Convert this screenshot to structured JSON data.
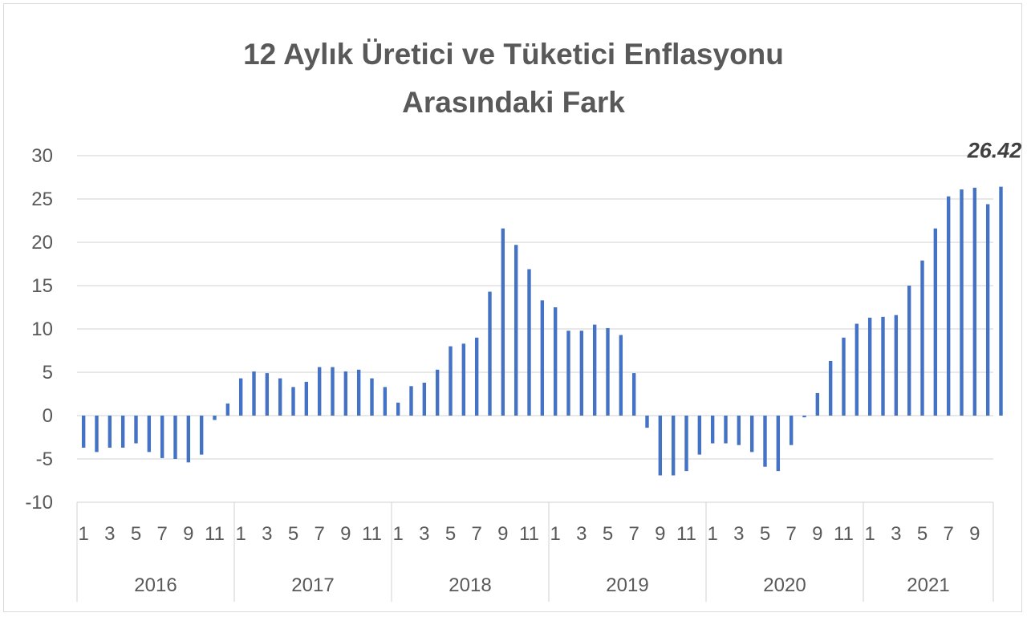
{
  "chart_data": {
    "type": "bar",
    "title_lines": [
      "12 Aylık Üretici ve Tüketici Enflasyonu",
      "Arasındaki Fark"
    ],
    "xlabel": "",
    "ylabel": "",
    "ylim": [
      -10,
      30
    ],
    "yticks": [
      30,
      25,
      20,
      15,
      10,
      5,
      0,
      -5,
      -10
    ],
    "grid": true,
    "legend": "none",
    "bar_color": "#4472c4",
    "years": [
      "2016",
      "2017",
      "2018",
      "2019",
      "2020",
      "2021"
    ],
    "month_tick_labels": [
      "1",
      "3",
      "5",
      "7",
      "9",
      "11"
    ],
    "month_tick_labels_2021": [
      "1",
      "3",
      "5",
      "7",
      "9"
    ],
    "values": [
      -3.7,
      -4.2,
      -3.7,
      -3.7,
      -3.2,
      -4.2,
      -4.9,
      -5.0,
      -5.4,
      -4.5,
      -0.5,
      1.4,
      4.3,
      5.1,
      4.9,
      4.3,
      3.3,
      3.9,
      5.6,
      5.6,
      5.1,
      5.3,
      4.3,
      3.3,
      1.5,
      3.4,
      3.8,
      5.3,
      8.0,
      8.3,
      9.0,
      14.3,
      21.6,
      19.7,
      16.9,
      13.3,
      12.5,
      9.8,
      9.8,
      10.5,
      10.1,
      9.3,
      4.9,
      -1.4,
      -6.9,
      -6.9,
      -6.4,
      -4.5,
      -3.2,
      -3.2,
      -3.4,
      -4.2,
      -5.9,
      -6.4,
      -3.4,
      -0.2,
      2.6,
      6.3,
      9.0,
      10.6,
      11.3,
      11.4,
      11.6,
      15.0,
      17.9,
      21.6,
      25.3,
      26.1,
      26.3,
      24.4,
      26.42
    ],
    "annotation": {
      "text": "26.42",
      "index": 70
    }
  }
}
